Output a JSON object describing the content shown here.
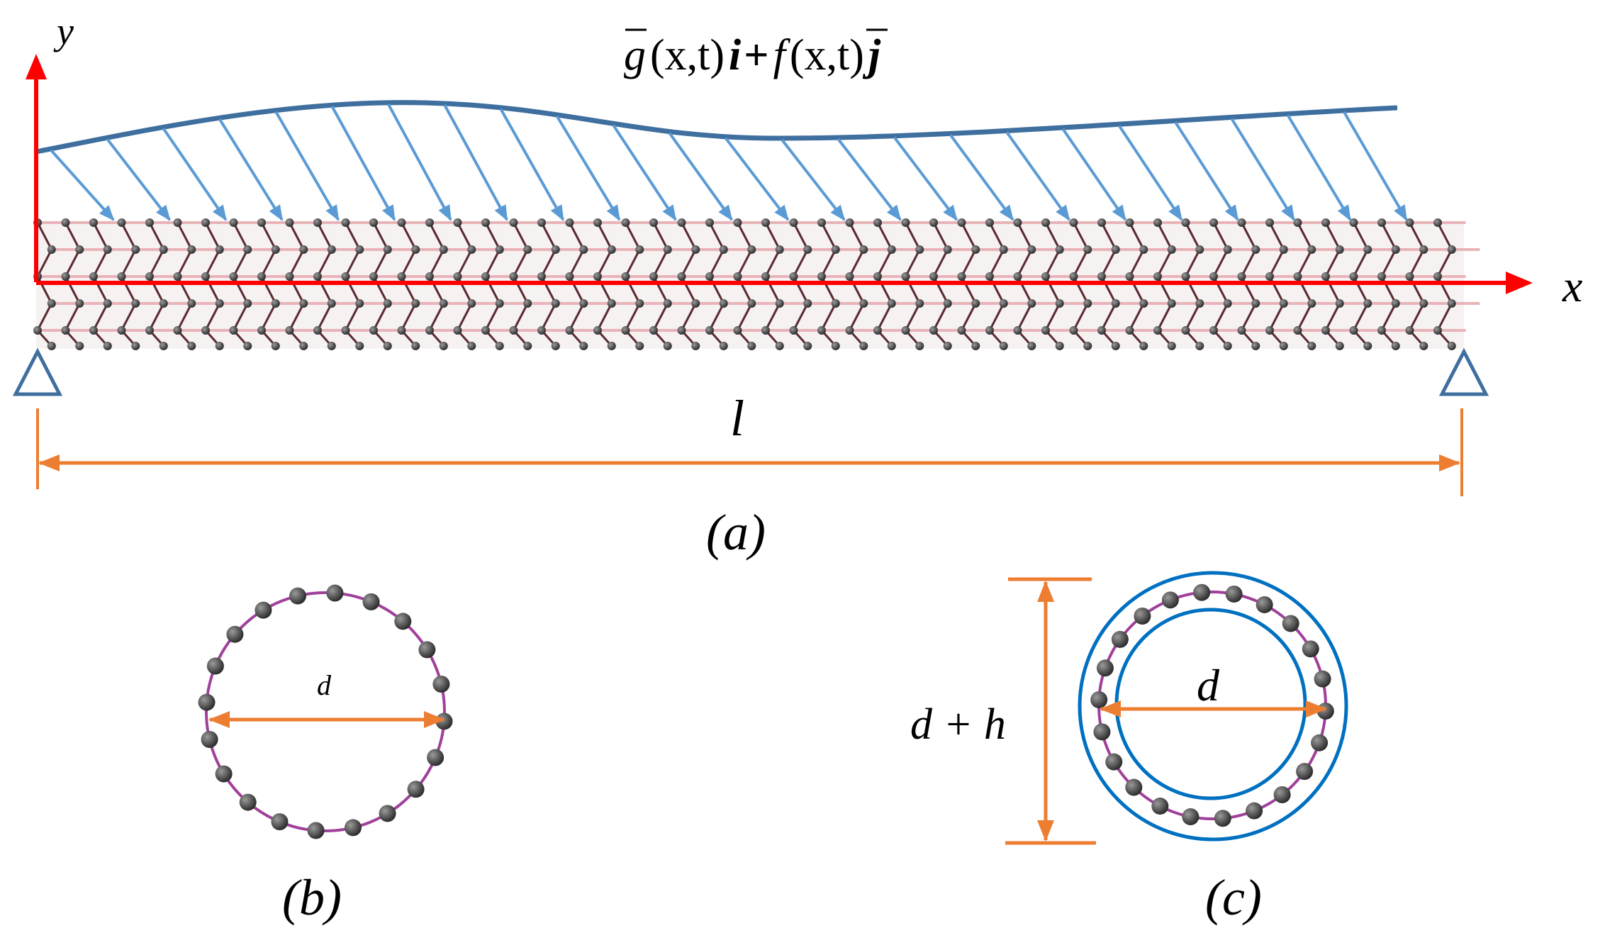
{
  "colors": {
    "axis": "#ff0000",
    "load_curve": "#3f6f9f",
    "load_arrows": "#5b9bd5",
    "dimension": "#ed7d31",
    "support": "#3f6f9f",
    "tube_ring": "#a0409a",
    "shell": "#0070c0",
    "atom": "#4a4a4a",
    "bond": "#5a2a30"
  },
  "panel_a": {
    "load_label": {
      "g": "g",
      "args1": "(x,t)",
      "i": "i",
      "plus": "+",
      "f": "f",
      "args2": "(x,t)",
      "j": "j"
    },
    "y_axis_label": "y",
    "x_axis_label": "x",
    "length_label": "l",
    "caption": "(a)"
  },
  "panel_b": {
    "diameter_label": "d",
    "caption": "(b)"
  },
  "panel_c": {
    "outer_label": "d + h",
    "diameter_label": "d",
    "caption": "(c)"
  },
  "icons": [
    "pin-support-icon",
    "roller-support-icon"
  ]
}
